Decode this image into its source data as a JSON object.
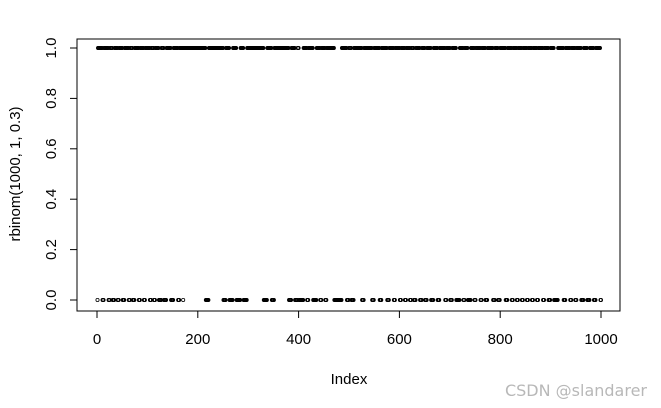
{
  "chart_data": {
    "type": "scatter",
    "xlabel": "Index",
    "ylabel": "rbinom(1000, 1, 0.3)",
    "xlim": [
      0,
      1000
    ],
    "ylim": [
      0,
      1
    ],
    "x_ticks": [
      "0",
      "200",
      "400",
      "600",
      "800",
      "1000"
    ],
    "y_ticks": [
      "0.0",
      "0.2",
      "0.4",
      "0.6",
      "0.8",
      "1.0"
    ],
    "n": 1000,
    "p": 0.3,
    "marker": "open-circle",
    "grid": false,
    "legend": "none",
    "values_at_one_ranges": [
      [
        2,
        10
      ],
      [
        14,
        22
      ],
      [
        26,
        30
      ],
      [
        35,
        40
      ],
      [
        44,
        50
      ],
      [
        55,
        62
      ],
      [
        66,
        70
      ],
      [
        75,
        82
      ],
      [
        86,
        92
      ],
      [
        96,
        104
      ],
      [
        108,
        112
      ],
      [
        116,
        122
      ],
      [
        128,
        132
      ],
      [
        138,
        146
      ],
      [
        152,
        160
      ],
      [
        164,
        170
      ],
      [
        172,
        215
      ],
      [
        222,
        250
      ],
      [
        256,
        262
      ],
      [
        270,
        276
      ],
      [
        285,
        290
      ],
      [
        298,
        330
      ],
      [
        338,
        346
      ],
      [
        352,
        380
      ],
      [
        386,
        392
      ],
      [
        398,
        400
      ],
      [
        410,
        416
      ],
      [
        420,
        428
      ],
      [
        436,
        442
      ],
      [
        446,
        452
      ],
      [
        456,
        470
      ],
      [
        486,
        495
      ],
      [
        500,
        504
      ],
      [
        510,
        525
      ],
      [
        530,
        545
      ],
      [
        550,
        560
      ],
      [
        565,
        575
      ],
      [
        580,
        588
      ],
      [
        592,
        600
      ],
      [
        604,
        610
      ],
      [
        614,
        620
      ],
      [
        624,
        628
      ],
      [
        633,
        640
      ],
      [
        645,
        650
      ],
      [
        655,
        662
      ],
      [
        668,
        675
      ],
      [
        680,
        690
      ],
      [
        694,
        700
      ],
      [
        705,
        712
      ],
      [
        720,
        726
      ],
      [
        730,
        735
      ],
      [
        742,
        748
      ],
      [
        752,
        760
      ],
      [
        764,
        770
      ],
      [
        775,
        785
      ],
      [
        790,
        795
      ],
      [
        800,
        810
      ],
      [
        815,
        822
      ],
      [
        826,
        832
      ],
      [
        836,
        842
      ],
      [
        846,
        852
      ],
      [
        856,
        862
      ],
      [
        866,
        872
      ],
      [
        876,
        884
      ],
      [
        888,
        895
      ],
      [
        900,
        906
      ],
      [
        915,
        925
      ],
      [
        930,
        938
      ],
      [
        942,
        948
      ],
      [
        952,
        960
      ],
      [
        966,
        972
      ],
      [
        978,
        985
      ],
      [
        990,
        998
      ]
    ]
  },
  "watermark": "CSDN @slandarer"
}
